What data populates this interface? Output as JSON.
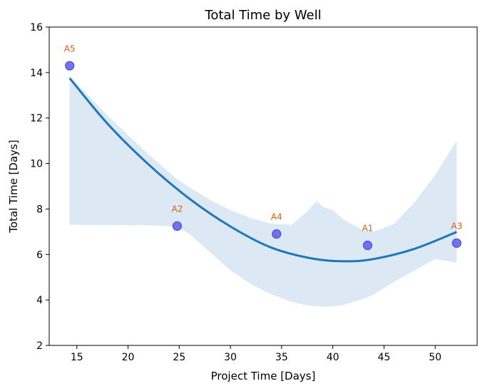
{
  "chart_data": {
    "type": "scatter",
    "title": "Total Time by Well",
    "xlabel": "Project Time [Days]",
    "ylabel": "Total Time [Days]",
    "xlim": [
      12.3,
      54.1
    ],
    "ylim": [
      2,
      16
    ],
    "xticks": [
      15,
      20,
      25,
      30,
      35,
      40,
      45,
      50
    ],
    "yticks": [
      2,
      4,
      6,
      8,
      10,
      12,
      14,
      16
    ],
    "grid": false,
    "points": [
      {
        "label": "A5",
        "x": 14.3,
        "y": 14.3
      },
      {
        "label": "A2",
        "x": 24.8,
        "y": 7.25
      },
      {
        "label": "A4",
        "x": 34.5,
        "y": 6.9
      },
      {
        "label": "A1",
        "x": 43.4,
        "y": 6.4
      },
      {
        "label": "A3",
        "x": 52.1,
        "y": 6.5
      }
    ],
    "fit": {
      "type": "quadratic",
      "x": [
        14.3,
        18,
        22,
        26,
        30,
        34,
        38,
        41.2,
        44,
        48,
        52.1
      ],
      "y": [
        13.75,
        11.75,
        9.96,
        8.45,
        7.23,
        6.3,
        5.82,
        5.7,
        5.8,
        6.25,
        6.99
      ]
    },
    "band": {
      "x": [
        14.3,
        18,
        22,
        24.8,
        26,
        28,
        30,
        32,
        34,
        36,
        37.5,
        38.4,
        39.2,
        40,
        41,
        43,
        44,
        46,
        48,
        50,
        52.1
      ],
      "upper": [
        13.85,
        12.1,
        10.4,
        9.3,
        8.95,
        8.4,
        7.95,
        7.6,
        7.35,
        7.3,
        7.9,
        8.35,
        8.05,
        7.95,
        7.55,
        7.05,
        7.0,
        7.35,
        8.3,
        9.5,
        11.0
      ],
      "lower": [
        7.3,
        7.3,
        7.28,
        7.22,
        6.9,
        6.1,
        5.3,
        4.7,
        4.25,
        3.92,
        3.76,
        3.72,
        3.7,
        3.72,
        3.78,
        4.05,
        4.25,
        4.8,
        5.3,
        5.8,
        5.65
      ]
    },
    "colors": {
      "fit_line": "#1f77b4",
      "band": "#dce8f3",
      "point_fill": "#6b6bf0",
      "point_edge": "#4a4ad0",
      "label": "#e05a12"
    }
  }
}
